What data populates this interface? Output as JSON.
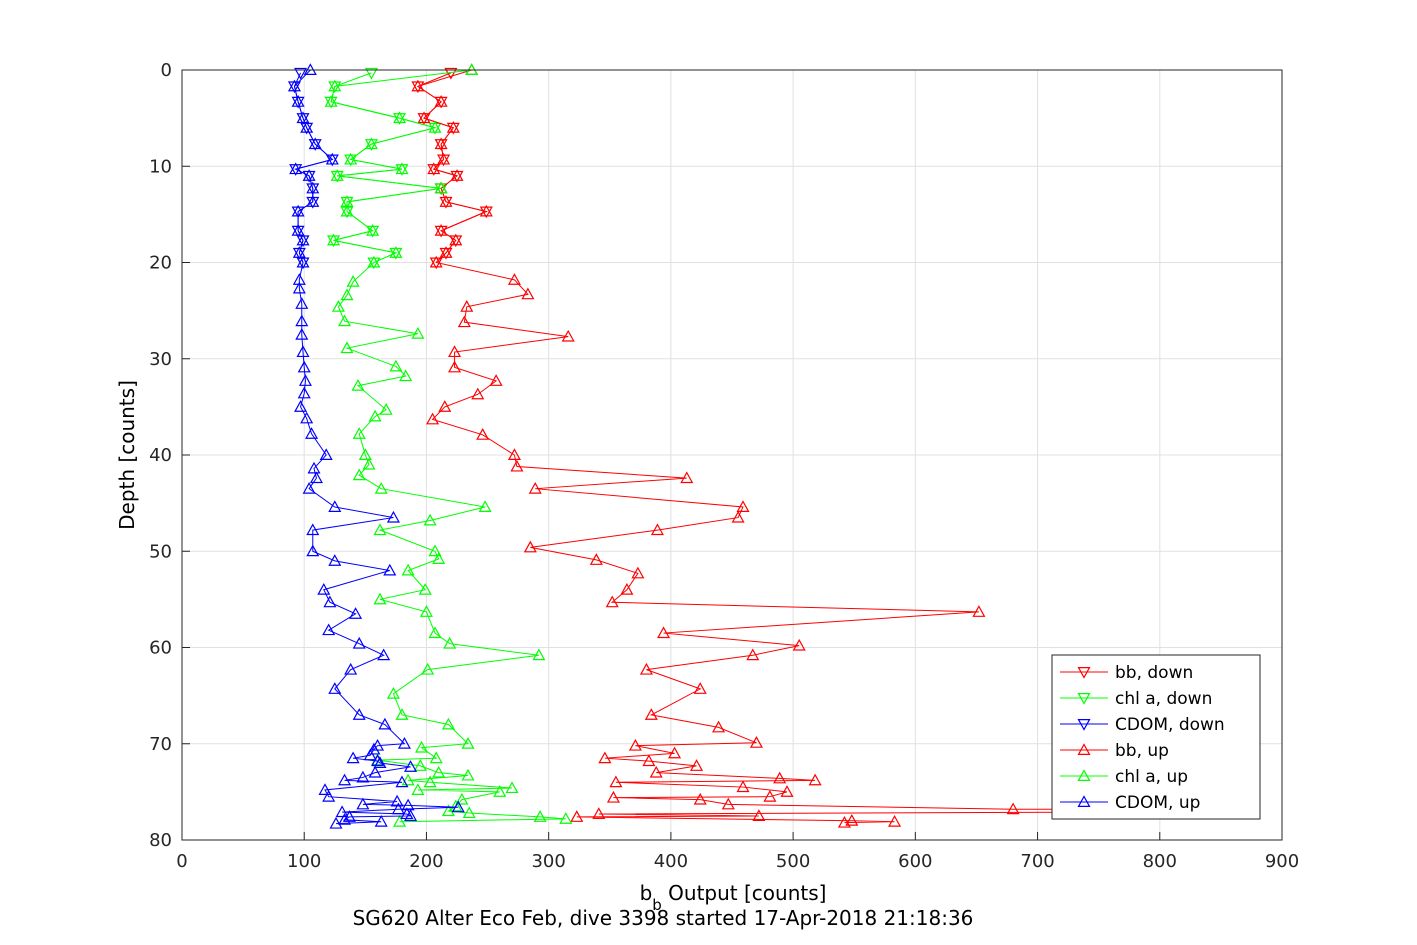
{
  "chart_data": {
    "type": "line",
    "title": "SG620 Alter Eco Feb, dive 3398 started 17-Apr-2018 21:18:36",
    "xlabel": {
      "main": "b",
      "sub": "b",
      "rest": " Output [counts]"
    },
    "ylabel": "Depth [counts]",
    "xlim": [
      0,
      900
    ],
    "ylim": [
      0,
      80
    ],
    "y_reversed": true,
    "grid": true,
    "legend_position": "bottom-right",
    "xticks": [
      0,
      100,
      200,
      300,
      400,
      500,
      600,
      700,
      800,
      900
    ],
    "yticks": [
      0,
      10,
      20,
      30,
      40,
      50,
      60,
      70,
      80
    ],
    "series": [
      {
        "name": "bb, down",
        "color": "#ff0000",
        "marker": "triangle-down",
        "points": [
          [
            220,
            0.3
          ],
          [
            193,
            1.7
          ],
          [
            212,
            3.3
          ],
          [
            198,
            5
          ],
          [
            222,
            6
          ],
          [
            212,
            7.7
          ],
          [
            214,
            9.3
          ],
          [
            206,
            10.3
          ],
          [
            225,
            11
          ],
          [
            212,
            12.3
          ],
          [
            216,
            13.7
          ],
          [
            249,
            14.7
          ],
          [
            212,
            16.7
          ],
          [
            224,
            17.7
          ],
          [
            216,
            19
          ],
          [
            208,
            20
          ]
        ]
      },
      {
        "name": "chl a, down",
        "color": "#00ff00",
        "marker": "triangle-down",
        "points": [
          [
            155,
            0.3
          ],
          [
            125,
            1.7
          ],
          [
            122,
            3.3
          ],
          [
            178,
            5
          ],
          [
            207,
            6
          ],
          [
            155,
            7.7
          ],
          [
            138,
            9.3
          ],
          [
            180,
            10.3
          ],
          [
            127,
            11
          ],
          [
            212,
            12.3
          ],
          [
            135,
            13.7
          ],
          [
            135,
            14.7
          ],
          [
            156,
            16.7
          ],
          [
            124,
            17.7
          ],
          [
            175,
            19
          ],
          [
            157,
            20
          ]
        ]
      },
      {
        "name": "CDOM, down",
        "color": "#0000ff",
        "marker": "triangle-down",
        "points": [
          [
            97,
            0.3
          ],
          [
            92,
            1.7
          ],
          [
            95,
            3.3
          ],
          [
            99,
            5
          ],
          [
            102,
            6
          ],
          [
            109,
            7.7
          ],
          [
            123,
            9.3
          ],
          [
            93,
            10.3
          ],
          [
            104,
            11
          ],
          [
            107,
            12.3
          ],
          [
            107,
            13.7
          ],
          [
            95,
            14.7
          ],
          [
            95,
            16.7
          ],
          [
            99,
            17.7
          ],
          [
            96,
            19
          ],
          [
            99,
            20
          ]
        ]
      },
      {
        "name": "bb, up",
        "color": "#ff0000",
        "marker": "triangle-up",
        "points": [
          [
            237,
            0
          ],
          [
            193,
            1.7
          ],
          [
            212,
            3.3
          ],
          [
            198,
            5
          ],
          [
            222,
            6
          ],
          [
            212,
            7.7
          ],
          [
            214,
            9.3
          ],
          [
            206,
            10.3
          ],
          [
            225,
            11
          ],
          [
            212,
            12.3
          ],
          [
            216,
            13.7
          ],
          [
            249,
            14.7
          ],
          [
            212,
            16.7
          ],
          [
            224,
            17.7
          ],
          [
            216,
            19
          ],
          [
            208,
            20
          ],
          [
            272,
            21.8
          ],
          [
            283,
            23.3
          ],
          [
            233,
            24.6
          ],
          [
            231,
            26.2
          ],
          [
            316,
            27.7
          ],
          [
            223,
            29.3
          ],
          [
            223,
            30.9
          ],
          [
            257,
            32.3
          ],
          [
            242,
            33.7
          ],
          [
            215,
            35
          ],
          [
            205,
            36.3
          ],
          [
            246,
            37.9
          ],
          [
            272,
            40
          ],
          [
            274,
            41.2
          ],
          [
            413,
            42.4
          ],
          [
            289,
            43.5
          ],
          [
            459,
            45.4
          ],
          [
            455,
            46.5
          ],
          [
            389,
            47.8
          ],
          [
            285,
            49.6
          ],
          [
            339,
            50.9
          ],
          [
            373,
            52.3
          ],
          [
            364,
            54
          ],
          [
            352,
            55.3
          ],
          [
            652,
            56.3
          ],
          [
            394,
            58.5
          ],
          [
            505,
            59.8
          ],
          [
            467,
            60.8
          ],
          [
            380,
            62.3
          ],
          [
            424,
            64.3
          ],
          [
            384,
            67
          ],
          [
            439,
            68.3
          ],
          [
            470,
            69.9
          ],
          [
            371,
            70.2
          ],
          [
            403,
            71
          ],
          [
            346,
            71.5
          ],
          [
            382,
            71.8
          ],
          [
            421,
            72.3
          ],
          [
            388,
            73
          ],
          [
            489,
            73.6
          ],
          [
            518,
            73.8
          ],
          [
            355,
            74
          ],
          [
            459,
            74.5
          ],
          [
            495,
            75
          ],
          [
            481,
            75.5
          ],
          [
            353,
            75.6
          ],
          [
            424,
            75.8
          ],
          [
            447,
            76.3
          ],
          [
            680,
            76.8
          ],
          [
            750,
            76.8
          ],
          [
            750,
            77.1
          ],
          [
            341,
            77.3
          ],
          [
            472,
            77.5
          ],
          [
            323,
            77.6
          ],
          [
            548,
            78
          ],
          [
            583,
            78.1
          ],
          [
            542,
            78.2
          ]
        ]
      },
      {
        "name": "chl a, up",
        "color": "#00ff00",
        "marker": "triangle-up",
        "points": [
          [
            237,
            0
          ],
          [
            125,
            1.7
          ],
          [
            122,
            3.3
          ],
          [
            178,
            5
          ],
          [
            207,
            6
          ],
          [
            155,
            7.7
          ],
          [
            138,
            9.3
          ],
          [
            180,
            10.3
          ],
          [
            127,
            11
          ],
          [
            212,
            12.3
          ],
          [
            135,
            13.7
          ],
          [
            135,
            14.7
          ],
          [
            156,
            16.7
          ],
          [
            124,
            17.7
          ],
          [
            175,
            19
          ],
          [
            157,
            20
          ],
          [
            140,
            22
          ],
          [
            135,
            23.4
          ],
          [
            128,
            24.6
          ],
          [
            133,
            26.1
          ],
          [
            193,
            27.4
          ],
          [
            135,
            28.9
          ],
          [
            175,
            30.8
          ],
          [
            183,
            31.8
          ],
          [
            144,
            32.8
          ],
          [
            167,
            35.3
          ],
          [
            158,
            36
          ],
          [
            145,
            37.8
          ],
          [
            150,
            40
          ],
          [
            153,
            41
          ],
          [
            145,
            42.1
          ],
          [
            163,
            43.5
          ],
          [
            248,
            45.4
          ],
          [
            203,
            46.8
          ],
          [
            162,
            47.8
          ],
          [
            207,
            50
          ],
          [
            210,
            50.8
          ],
          [
            185,
            52
          ],
          [
            199,
            54
          ],
          [
            162,
            55
          ],
          [
            200,
            56.3
          ],
          [
            207,
            58.5
          ],
          [
            219,
            59.6
          ],
          [
            292,
            60.8
          ],
          [
            201,
            62.3
          ],
          [
            173,
            64.8
          ],
          [
            180,
            67
          ],
          [
            218,
            68
          ],
          [
            234,
            70
          ],
          [
            196,
            70.4
          ],
          [
            208,
            71.5
          ],
          [
            160,
            71.7
          ],
          [
            195,
            72.3
          ],
          [
            210,
            73
          ],
          [
            234,
            73.3
          ],
          [
            185,
            73.8
          ],
          [
            203,
            74
          ],
          [
            270,
            74.6
          ],
          [
            193,
            74.8
          ],
          [
            260,
            75
          ],
          [
            229,
            75.8
          ],
          [
            224,
            76.5
          ],
          [
            218,
            77
          ],
          [
            235,
            77.2
          ],
          [
            293,
            77.6
          ],
          [
            314,
            77.8
          ],
          [
            178,
            78.1
          ]
        ]
      },
      {
        "name": "CDOM, up",
        "color": "#0000ff",
        "marker": "triangle-up",
        "points": [
          [
            105,
            0
          ],
          [
            92,
            1.7
          ],
          [
            95,
            3.3
          ],
          [
            99,
            5
          ],
          [
            102,
            6
          ],
          [
            109,
            7.7
          ],
          [
            123,
            9.3
          ],
          [
            93,
            10.3
          ],
          [
            104,
            11
          ],
          [
            107,
            12.3
          ],
          [
            107,
            13.7
          ],
          [
            95,
            14.7
          ],
          [
            95,
            16.7
          ],
          [
            99,
            17.7
          ],
          [
            96,
            19
          ],
          [
            99,
            20
          ],
          [
            96,
            21.8
          ],
          [
            96,
            22.7
          ],
          [
            98,
            24.3
          ],
          [
            98,
            26.1
          ],
          [
            98,
            27.5
          ],
          [
            99,
            29.3
          ],
          [
            100,
            30.9
          ],
          [
            101,
            32.3
          ],
          [
            100,
            33.6
          ],
          [
            97,
            35
          ],
          [
            102,
            36.2
          ],
          [
            106,
            37.8
          ],
          [
            118,
            40
          ],
          [
            108,
            41.4
          ],
          [
            110,
            42.4
          ],
          [
            104,
            43.5
          ],
          [
            125,
            45.4
          ],
          [
            173,
            46.5
          ],
          [
            107,
            47.8
          ],
          [
            107,
            50
          ],
          [
            125,
            51
          ],
          [
            170,
            52
          ],
          [
            116,
            54
          ],
          [
            121,
            55.3
          ],
          [
            142,
            56.5
          ],
          [
            120,
            58.2
          ],
          [
            145,
            59.6
          ],
          [
            165,
            60.8
          ],
          [
            138,
            62.3
          ],
          [
            125,
            64.3
          ],
          [
            145,
            67
          ],
          [
            166,
            68
          ],
          [
            182,
            70
          ],
          [
            160,
            70.2
          ],
          [
            157,
            70.6
          ],
          [
            154,
            71.2
          ],
          [
            140,
            71.5
          ],
          [
            160,
            71.8
          ],
          [
            162,
            72
          ],
          [
            187,
            72.4
          ],
          [
            158,
            73
          ],
          [
            148,
            73.5
          ],
          [
            133,
            73.8
          ],
          [
            180,
            74
          ],
          [
            117,
            74.8
          ],
          [
            120,
            75.5
          ],
          [
            176,
            76
          ],
          [
            148,
            76.3
          ],
          [
            185,
            76.4
          ],
          [
            226,
            76.6
          ],
          [
            177,
            76.8
          ],
          [
            131,
            77.1
          ],
          [
            184,
            77.3
          ],
          [
            187,
            77.5
          ],
          [
            137,
            77.6
          ],
          [
            133,
            77.9
          ],
          [
            163,
            78.1
          ],
          [
            126,
            78.3
          ]
        ]
      }
    ]
  }
}
